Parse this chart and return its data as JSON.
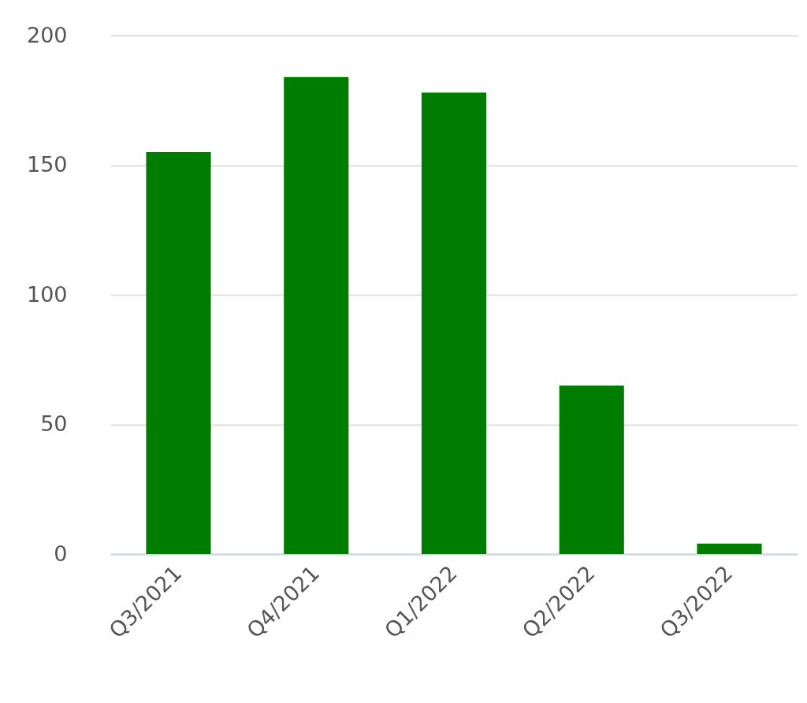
{
  "chart_data": {
    "type": "bar",
    "categories": [
      "Q3/2021",
      "Q4/2021",
      "Q1/2022",
      "Q2/2022",
      "Q3/2022"
    ],
    "values": [
      155,
      184,
      178,
      65,
      4
    ],
    "color": "#007d00",
    "ylim": [
      0,
      200
    ],
    "yticks": [
      0,
      50,
      100,
      150,
      200
    ],
    "grid": "y"
  }
}
